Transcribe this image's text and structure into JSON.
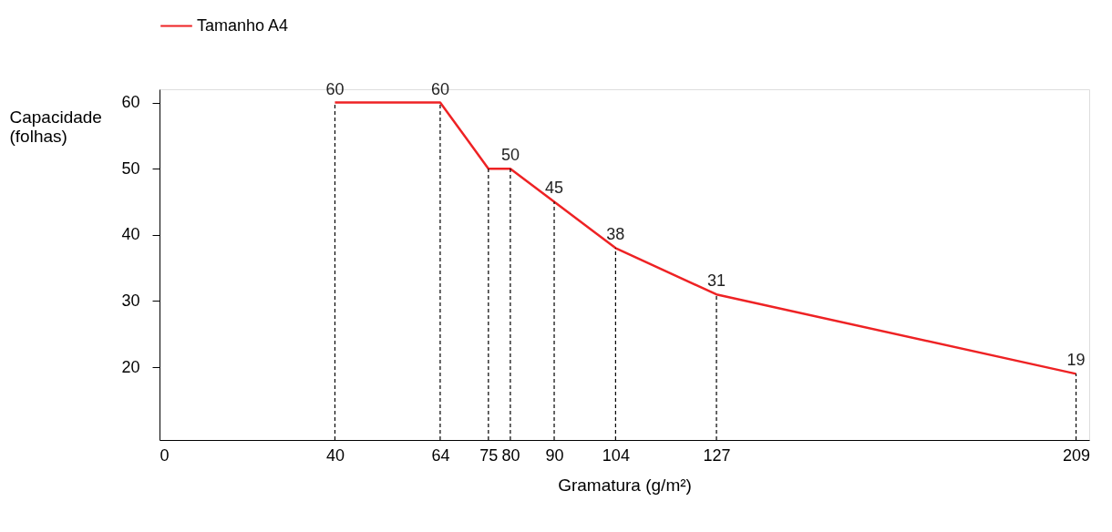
{
  "chart_data": {
    "type": "line",
    "xlabel": "Gramatura (g/m²)",
    "ylabel": "Capacidade (folhas)",
    "x": [
      40,
      64,
      75,
      80,
      90,
      104,
      127,
      209
    ],
    "series": [
      {
        "name": "Tamanho A4",
        "color": "#ee2224",
        "values": [
          60,
          60,
          50,
          50,
          45,
          38,
          31,
          19
        ],
        "value_labels": [
          "60",
          "60",
          null,
          "50",
          "45",
          "38",
          "31",
          "19"
        ]
      }
    ],
    "xlim": [
      0,
      212
    ],
    "xticks": [
      0,
      40,
      64,
      75,
      80,
      90,
      104,
      127,
      209
    ],
    "ylim": [
      9,
      62
    ],
    "yticks": [
      20,
      30,
      40,
      50,
      60
    ],
    "ref_lines": [
      {
        "axis": "x",
        "value": 40,
        "line_style": "dashed",
        "color": "#000000"
      },
      {
        "axis": "x",
        "value": 64,
        "line_style": "dashed",
        "color": "#000000"
      },
      {
        "axis": "x",
        "value": 75,
        "line_style": "dashed",
        "color": "#000000"
      },
      {
        "axis": "x",
        "value": 80,
        "line_style": "dashed",
        "color": "#000000"
      },
      {
        "axis": "x",
        "value": 90,
        "line_style": "dashed",
        "color": "#000000"
      },
      {
        "axis": "x",
        "value": 104,
        "line_style": "dashed",
        "color": "#000000"
      },
      {
        "axis": "x",
        "value": 127,
        "line_style": "dashed",
        "color": "#000000"
      },
      {
        "axis": "x",
        "value": 209,
        "line_style": "dashed",
        "color": "#000000"
      }
    ],
    "grid": false,
    "legend": "top",
    "marker": "none",
    "line_style": "solid"
  }
}
